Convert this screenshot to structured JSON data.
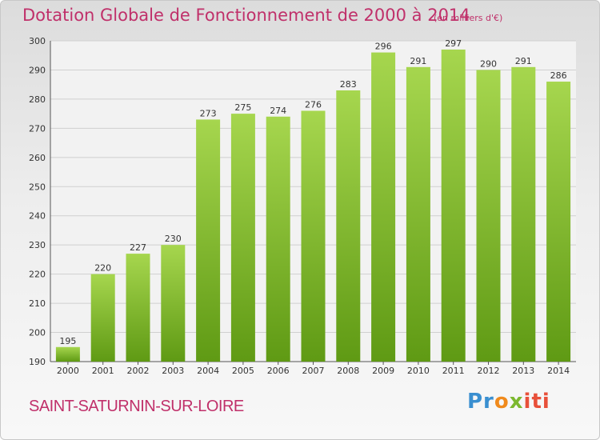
{
  "chart_data": {
    "type": "bar",
    "title": "Dotation Globale de Fonctionnement de 2000 à 2014",
    "subtitle": "(en milliers d'€)",
    "categories": [
      "2000",
      "2001",
      "2002",
      "2003",
      "2004",
      "2005",
      "2006",
      "2007",
      "2008",
      "2009",
      "2010",
      "2011",
      "2012",
      "2013",
      "2014"
    ],
    "values": [
      195,
      220,
      227,
      230,
      273,
      275,
      274,
      276,
      283,
      296,
      291,
      297,
      290,
      291,
      286
    ],
    "ylim": [
      190,
      300
    ],
    "yticks": [
      190,
      200,
      210,
      220,
      230,
      240,
      250,
      260,
      270,
      280,
      290,
      300
    ],
    "grid": true,
    "bar_color": "#7fb92e"
  },
  "footer": {
    "town": "SAINT-SATURNIN-SUR-LOIRE",
    "logo": [
      "Pr",
      "o",
      "x",
      "iti"
    ]
  }
}
